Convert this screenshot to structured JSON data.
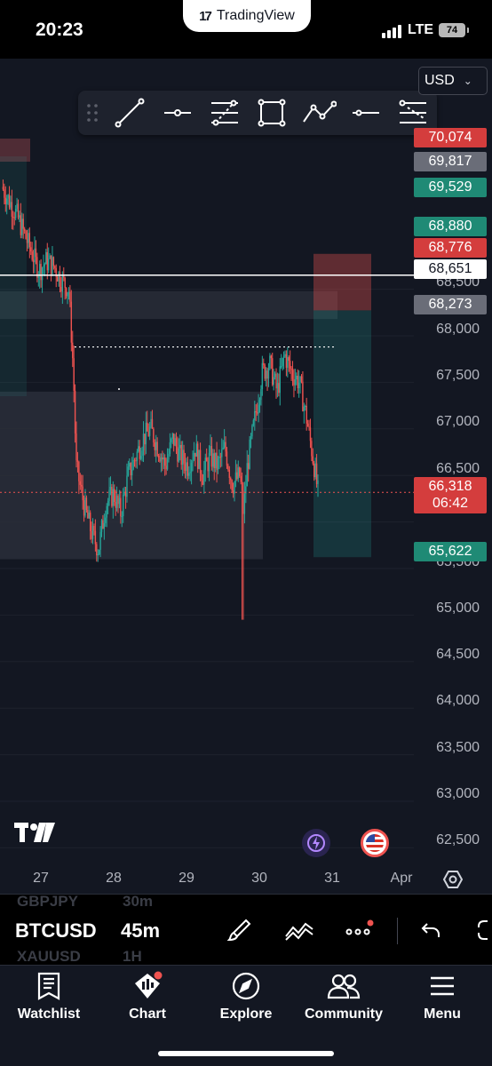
{
  "status_bar": {
    "time": "20:23",
    "app_pill": "TradingView",
    "network": "LTE",
    "battery": "74"
  },
  "toolbar": {
    "currency": "USD",
    "tools": [
      "trend-line-tool-icon",
      "horizontal-ray-tool-icon",
      "fib-retracement-tool-icon",
      "rectangle-tool-icon",
      "path-tool-icon",
      "horizontal-line-tool-icon",
      "fib-channel-tool-icon"
    ]
  },
  "chart": {
    "symbol": "BTCUSD",
    "interval": "45m",
    "price_ticks": [
      "68,500",
      "68,000",
      "67,500",
      "67,000",
      "66,500",
      "65,500",
      "65,000",
      "64,500",
      "64,000",
      "63,500",
      "63,000",
      "62,500"
    ],
    "time_ticks": [
      "27",
      "28",
      "29",
      "30",
      "31",
      "Apr"
    ],
    "badges": [
      {
        "label": "70,074",
        "kind": "sell"
      },
      {
        "label": "69,817",
        "kind": "neutral"
      },
      {
        "label": "69,529",
        "kind": "buy"
      },
      {
        "label": "68,880",
        "kind": "buy"
      },
      {
        "label": "68,776",
        "kind": "sell"
      },
      {
        "label": "68,651",
        "kind": "horizontal-line"
      },
      {
        "label": "68,273",
        "kind": "neutral"
      },
      {
        "label": "66,318",
        "kind": "last-price"
      },
      {
        "label": "06:42",
        "kind": "countdown"
      },
      {
        "label": "65,622",
        "kind": "buy"
      }
    ],
    "colors": {
      "up": "#26a69a",
      "down": "#ef5350",
      "background": "#131722",
      "grid": "#1e222d"
    },
    "horizontal_line_price": 68651,
    "last_price": 66318
  },
  "chart_data": {
    "type": "candlestick",
    "title": "",
    "xlabel": "",
    "ylabel": "",
    "ylim": [
      62250,
      70430
    ],
    "x_categories": [
      "27",
      "28",
      "29",
      "30",
      "31",
      "Apr"
    ],
    "last_price": 66318,
    "levels": [
      70074,
      69817,
      69529,
      68880,
      68776,
      68651,
      68273,
      65622
    ],
    "close_path": [
      [
        0,
        69600
      ],
      [
        2,
        69300
      ],
      [
        4,
        68900
      ],
      [
        5,
        68700
      ],
      [
        6,
        68800
      ],
      [
        7,
        68750
      ],
      [
        8,
        68600
      ],
      [
        9,
        68500
      ],
      [
        9.3,
        68100
      ],
      [
        9.5,
        67800
      ],
      [
        9.7,
        67400
      ],
      [
        10,
        66600
      ],
      [
        11,
        66200
      ],
      [
        12,
        65900
      ],
      [
        13,
        65700
      ],
      [
        14,
        66200
      ],
      [
        15,
        66300
      ],
      [
        16,
        66100
      ],
      [
        17,
        66500
      ],
      [
        18,
        66700
      ],
      [
        19,
        66900
      ],
      [
        20,
        67000
      ],
      [
        21,
        66800
      ],
      [
        22,
        66600
      ],
      [
        23,
        66900
      ],
      [
        24,
        66700
      ],
      [
        25,
        66600
      ],
      [
        26,
        66800
      ],
      [
        27,
        66500
      ],
      [
        28,
        66700
      ],
      [
        29,
        66600
      ],
      [
        30,
        66800
      ],
      [
        31,
        66400
      ],
      [
        32,
        66500
      ],
      [
        32.5,
        66100
      ],
      [
        33,
        66600
      ],
      [
        34,
        67100
      ],
      [
        35,
        67600
      ],
      [
        36,
        67700
      ],
      [
        37,
        67400
      ],
      [
        38,
        67800
      ],
      [
        39,
        67600
      ],
      [
        40,
        67500
      ],
      [
        41,
        67100
      ],
      [
        42,
        66600
      ],
      [
        42.5,
        66318
      ]
    ]
  },
  "symbol_bar": {
    "ghost_prev": "GBPJPY",
    "ghost_prev_tf": "30m",
    "ghost_next": "XAUUSD",
    "ghost_next_tf": "1H"
  },
  "bottom_nav": {
    "items": [
      {
        "label": "Watchlist",
        "icon": "watchlist-icon"
      },
      {
        "label": "Chart",
        "icon": "chart-icon"
      },
      {
        "label": "Explore",
        "icon": "compass-icon"
      },
      {
        "label": "Community",
        "icon": "community-icon"
      },
      {
        "label": "Menu",
        "icon": "menu-icon"
      }
    ]
  }
}
